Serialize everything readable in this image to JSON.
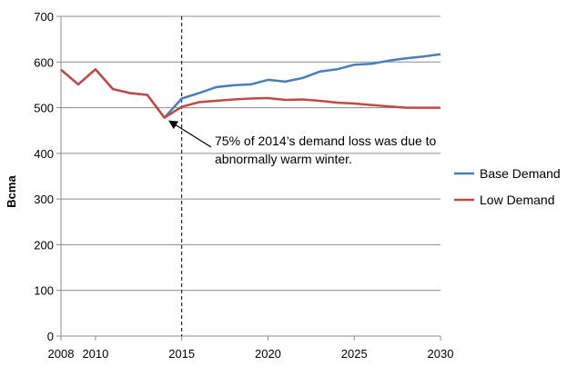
{
  "chart_data": {
    "type": "line",
    "title": "",
    "xlabel": "",
    "ylabel": "Bcma",
    "xlim": [
      2008,
      2030
    ],
    "ylim": [
      0,
      700
    ],
    "xticks": [
      2008,
      2010,
      2015,
      2020,
      2025,
      2030
    ],
    "yticks": [
      0,
      100,
      200,
      300,
      400,
      500,
      600,
      700
    ],
    "grid": "horizontal",
    "legend": "right",
    "vertical_marker": {
      "x": 2015,
      "style": "dashed"
    },
    "annotation": {
      "lines": [
        "75% of 2014’s demand loss was due to",
        "abnormally warm winter."
      ],
      "arrow_target": {
        "x": 2014,
        "y": 478
      }
    },
    "series": [
      {
        "name": "Base Demand",
        "color": "#4a7ebb",
        "x": [
          2008,
          2009,
          2010,
          2011,
          2012,
          2013,
          2014,
          2015,
          2016,
          2017,
          2018,
          2019,
          2020,
          2021,
          2022,
          2023,
          2024,
          2025,
          2026,
          2027,
          2028,
          2029,
          2030
        ],
        "y": [
          583,
          551,
          584,
          541,
          532,
          528,
          478,
          520,
          532,
          545,
          549,
          551,
          561,
          557,
          565,
          579,
          584,
          594,
          596,
          603,
          608,
          612,
          617
        ]
      },
      {
        "name": "Low Demand",
        "color": "#be4b48",
        "x": [
          2008,
          2009,
          2010,
          2011,
          2012,
          2013,
          2014,
          2015,
          2016,
          2017,
          2018,
          2019,
          2020,
          2021,
          2022,
          2023,
          2024,
          2025,
          2026,
          2027,
          2028,
          2029,
          2030
        ],
        "y": [
          583,
          551,
          584,
          541,
          532,
          528,
          478,
          502,
          512,
          515,
          518,
          520,
          521,
          517,
          518,
          515,
          511,
          509,
          506,
          503,
          500,
          500,
          500
        ]
      }
    ]
  }
}
